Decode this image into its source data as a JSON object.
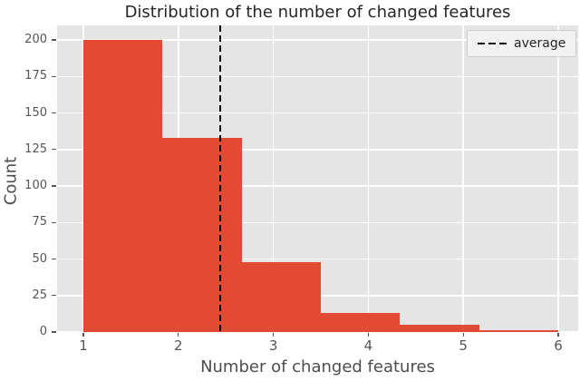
{
  "chart_data": {
    "type": "bar",
    "subtype": "histogram",
    "title": "Distribution of the number of changed features",
    "xlabel": "Number of changed features",
    "ylabel": "Count",
    "bin_edges": [
      1,
      1.8333,
      2.6667,
      3.5,
      4.3333,
      5.1667,
      6
    ],
    "counts": [
      200,
      133,
      48,
      13,
      5,
      1
    ],
    "x_ticks": [
      1,
      2,
      3,
      4,
      5,
      6
    ],
    "y_ticks": [
      0,
      25,
      50,
      75,
      100,
      125,
      150,
      175,
      200
    ],
    "xlim": [
      0.72,
      6.21
    ],
    "ylim": [
      0,
      210
    ],
    "grid": true,
    "legend_position": "upper-right",
    "average_line": {
      "x": 2.44,
      "label": "average",
      "color": "#0a0a0a",
      "style": "dashed"
    },
    "colors": {
      "bar": "#e24a33",
      "plot_background": "#e5e5e5",
      "gridline": "#ffffff",
      "tick_label": "#555555",
      "axis_label": "#4d4d4d",
      "title": "#262626",
      "figure_background": "#ffffff"
    }
  }
}
